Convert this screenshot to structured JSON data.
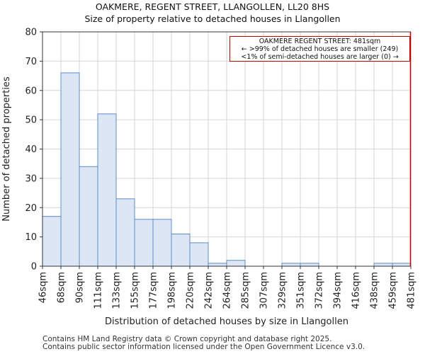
{
  "chart_data": {
    "type": "bar",
    "title": "OAKMERE, REGENT STREET, LLANGOLLEN, LL20 8HS",
    "subtitle": "Size of property relative to detached houses in Llangollen",
    "xlabel": "Distribution of detached houses by size in Llangollen",
    "ylabel": "Number of detached properties",
    "ylim": [
      0,
      80
    ],
    "yticks": [
      0,
      10,
      20,
      30,
      40,
      50,
      60,
      70,
      80
    ],
    "bin_edges": [
      "46sqm",
      "68sqm",
      "90sqm",
      "111sqm",
      "133sqm",
      "155sqm",
      "177sqm",
      "198sqm",
      "220sqm",
      "242sqm",
      "264sqm",
      "285sqm",
      "307sqm",
      "329sqm",
      "351sqm",
      "372sqm",
      "394sqm",
      "416sqm",
      "438sqm",
      "459sqm",
      "481sqm"
    ],
    "values": [
      17,
      66,
      34,
      52,
      23,
      16,
      16,
      11,
      8,
      1,
      2,
      0,
      0,
      1,
      1,
      0,
      0,
      0,
      1,
      1
    ],
    "grid": true,
    "marker": {
      "value": "481sqm",
      "color": "#c00000"
    },
    "bar_fill": "#dce6f4",
    "bar_edge": "#5b8cc8"
  },
  "annotation": {
    "line1": "OAKMERE REGENT STREET: 481sqm",
    "line2": "← >99% of detached houses are smaller (249)",
    "line3": "<1% of semi-detached houses are larger (0) →"
  },
  "footer": {
    "line1": "Contains HM Land Registry data © Crown copyright and database right 2025.",
    "line2": "Contains public sector information licensed under the Open Government Licence v3.0."
  }
}
